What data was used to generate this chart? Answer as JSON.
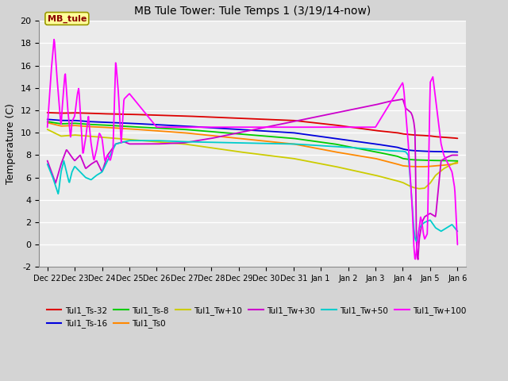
{
  "title": "MB Tule Tower: Tule Temps 1 (3/19/14-now)",
  "ylabel": "Temperature (C)",
  "xlabel": "",
  "tick_labels": [
    "Dec 22",
    "Dec 23",
    "Dec 24",
    "Dec 25",
    "Dec 26",
    "Dec 27",
    "Dec 28",
    "Dec 29",
    "Dec 30",
    "Dec 31",
    "Jan 1",
    "Jan 2",
    "Jan 3",
    "Jan 4",
    "Jan 5",
    "Jan 6"
  ],
  "ylim": [
    -2,
    20
  ],
  "yticks": [
    -2,
    0,
    2,
    4,
    6,
    8,
    10,
    12,
    14,
    16,
    18,
    20
  ],
  "fig_bg": "#d4d4d4",
  "plot_bg": "#ebebeb",
  "grid_color": "#ffffff",
  "series_colors": {
    "Tul1_Ts-32": "#dd0000",
    "Tul1_Ts-16": "#0000dd",
    "Tul1_Ts-8": "#00cc00",
    "Tul1_Ts0": "#ff8800",
    "Tul1_Tw+10": "#cccc00",
    "Tul1_Tw+30": "#cc00cc",
    "Tul1_Tw+50": "#00cccc",
    "Tul1_Tw+100": "#ff00ff"
  },
  "annotation_text": "MB_tule",
  "annotation_color": "#8b0000",
  "annotation_bg": "#ffff99",
  "annotation_border": "#999900",
  "legend_ncol": 6,
  "lw": 1.3
}
